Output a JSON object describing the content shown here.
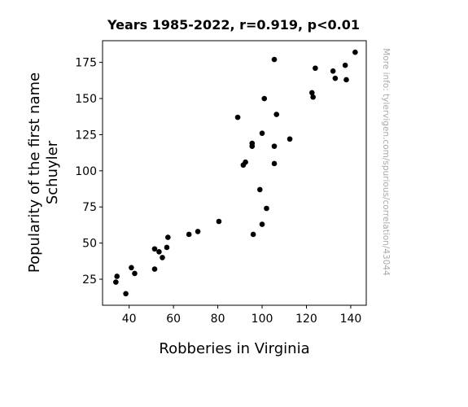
{
  "chart_data": {
    "type": "scatter",
    "title": "Years 1985-2022, r=0.919, p<0.01",
    "xlabel": "Robberies in Virginia",
    "ylabel_line1": "Popularity of the first name",
    "ylabel_line2": "Schuyler",
    "watermark": "More info: tylervigen.com/spurious/correlation/43044",
    "xlim": [
      28,
      147
    ],
    "ylim": [
      7,
      190
    ],
    "xticks": [
      40,
      60,
      80,
      100,
      120,
      140
    ],
    "yticks": [
      25,
      50,
      75,
      100,
      125,
      150,
      175
    ],
    "grid": false,
    "point_color": "#000000",
    "points": [
      [
        34,
        23
      ],
      [
        34.5,
        27
      ],
      [
        38.5,
        15
      ],
      [
        41,
        33
      ],
      [
        42.5,
        29
      ],
      [
        51.5,
        46
      ],
      [
        51.5,
        32
      ],
      [
        53.5,
        44
      ],
      [
        55,
        40
      ],
      [
        57,
        47
      ],
      [
        57.5,
        54
      ],
      [
        67,
        56
      ],
      [
        71,
        58
      ],
      [
        80.5,
        65
      ],
      [
        89,
        137
      ],
      [
        91.5,
        104
      ],
      [
        92.5,
        106
      ],
      [
        95.5,
        119
      ],
      [
        95.5,
        117
      ],
      [
        96,
        56
      ],
      [
        99,
        87
      ],
      [
        100,
        63
      ],
      [
        100,
        126
      ],
      [
        101,
        150
      ],
      [
        102,
        74
      ],
      [
        105.5,
        177
      ],
      [
        105.5,
        117
      ],
      [
        105.5,
        105
      ],
      [
        106.5,
        139
      ],
      [
        112.5,
        122
      ],
      [
        122.5,
        154
      ],
      [
        123,
        151
      ],
      [
        124,
        171
      ],
      [
        132,
        169
      ],
      [
        133,
        164
      ],
      [
        137.5,
        173
      ],
      [
        138,
        163
      ],
      [
        142,
        182
      ]
    ]
  }
}
